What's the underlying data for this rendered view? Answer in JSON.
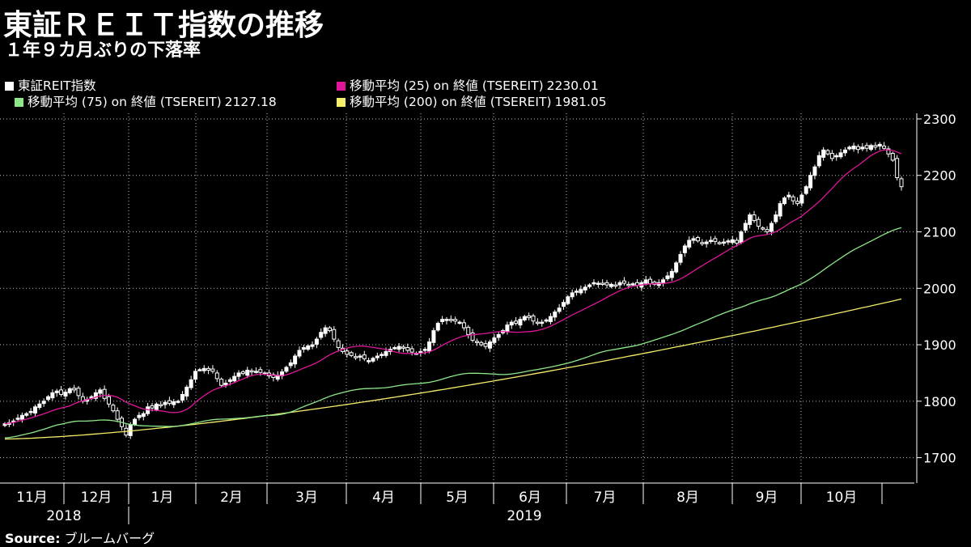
{
  "header": {
    "title": "東証ＲＥＩＴ指数の推移",
    "subtitle": "１年９カ月ぶりの下落率"
  },
  "legend": {
    "items": [
      {
        "label": "東証REIT指数",
        "value": "",
        "color": "#ffffff",
        "icon": "candlestick-icon"
      },
      {
        "label": "移動平均 (25)  on 終値 (TSEREIT)",
        "value": "2230.01",
        "color": "#e0169a"
      },
      {
        "label": "移動平均 (75)  on 終値 (TSEREIT)",
        "value": "2127.18",
        "color": "#8ee88a"
      },
      {
        "label": "移動平均 (200)  on 終値 (TSEREIT)",
        "value": "1981.05",
        "color": "#f5ee6a"
      }
    ]
  },
  "source": {
    "label": "Source:",
    "text": "ブルームバーグ"
  },
  "chart_data": {
    "type": "candlestick",
    "y_ticks": [
      1700,
      1800,
      1900,
      2000,
      2100,
      2200,
      2300
    ],
    "ylim": [
      1655,
      2310
    ],
    "grid": true,
    "months": [
      "11月",
      "12月",
      "1月",
      "2月",
      "3月",
      "4月",
      "5月",
      "6月",
      "7月",
      "8月",
      "9月",
      "10月"
    ],
    "years": [
      "2018",
      "2019"
    ],
    "close_series": [
      1760,
      1762,
      1765,
      1770,
      1775,
      1778,
      1782,
      1790,
      1795,
      1800,
      1808,
      1815,
      1818,
      1812,
      1816,
      1822,
      1820,
      1810,
      1800,
      1803,
      1808,
      1815,
      1820,
      1805,
      1795,
      1783,
      1768,
      1755,
      1740,
      1758,
      1768,
      1775,
      1778,
      1790,
      1788,
      1795,
      1793,
      1798,
      1796,
      1799,
      1800,
      1812,
      1825,
      1838,
      1853,
      1856,
      1858,
      1855,
      1853,
      1840,
      1828,
      1832,
      1838,
      1844,
      1850,
      1849,
      1855,
      1852,
      1853,
      1851,
      1850,
      1845,
      1842,
      1846,
      1852,
      1860,
      1868,
      1880,
      1890,
      1895,
      1898,
      1900,
      1910,
      1922,
      1930,
      1925,
      1910,
      1895,
      1888,
      1883,
      1881,
      1878,
      1880,
      1875,
      1872,
      1876,
      1880,
      1883,
      1888,
      1892,
      1895,
      1897,
      1894,
      1890,
      1887,
      1885,
      1888,
      1892,
      1905,
      1925,
      1938,
      1945,
      1945,
      1943,
      1942,
      1940,
      1930,
      1918,
      1908,
      1904,
      1900,
      1897,
      1905,
      1912,
      1918,
      1925,
      1935,
      1940,
      1938,
      1945,
      1950,
      1948,
      1942,
      1938,
      1940,
      1944,
      1950,
      1958,
      1965,
      1975,
      1985,
      1992,
      1995,
      1998,
      2002,
      2006,
      2010,
      2009,
      2008,
      2006,
      2007,
      2005,
      2010,
      2009,
      2006,
      2008,
      2005,
      2010,
      2015,
      2008,
      2007,
      2010,
      2015,
      2022,
      2030,
      2045,
      2060,
      2075,
      2085,
      2088,
      2084,
      2080,
      2082,
      2085,
      2083,
      2080,
      2082,
      2084,
      2086,
      2080,
      2100,
      2115,
      2130,
      2120,
      2110,
      2105,
      2100,
      2115,
      2130,
      2150,
      2160,
      2165,
      2155,
      2150,
      2165,
      2180,
      2200,
      2215,
      2235,
      2245,
      2238,
      2230,
      2235,
      2240,
      2245,
      2250,
      2252,
      2246,
      2250,
      2248,
      2253,
      2250,
      2255,
      2248,
      2238,
      2227,
      2196,
      2180
    ]
  }
}
